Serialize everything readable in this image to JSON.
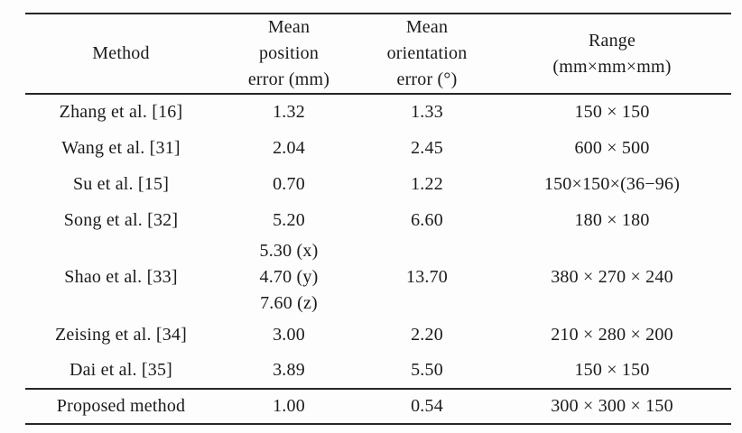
{
  "table": {
    "columns": [
      {
        "label": "Method"
      },
      {
        "label": "Mean\nposition\nerror (mm)"
      },
      {
        "label": "Mean\norientation\nerror (°)"
      },
      {
        "label": "Range\n(mm×mm×mm)"
      }
    ],
    "rows": [
      {
        "method": "Zhang et al. [16]",
        "position_error": "1.32",
        "orientation_error": "1.33",
        "range": "150 × 150"
      },
      {
        "method": "Wang et al. [31]",
        "position_error": "2.04",
        "orientation_error": "2.45",
        "range": "600 × 500"
      },
      {
        "method": "Su et al. [15]",
        "position_error": "0.70",
        "orientation_error": "1.22",
        "range": "150×150×(36−96)"
      },
      {
        "method": "Song et al. [32]",
        "position_error": "5.20",
        "orientation_error": "6.60",
        "range": "180 × 180"
      },
      {
        "method": "Shao et al. [33]",
        "position_error": "5.30 (x)\n4.70 (y)\n7.60 (z)",
        "orientation_error": "13.70",
        "range": "380 × 270 × 240"
      },
      {
        "method": "Zeising et al. [34]",
        "position_error": "3.00",
        "orientation_error": "2.20",
        "range": "210 × 280 × 200"
      },
      {
        "method": "Dai et al. [35]",
        "position_error": "3.89",
        "orientation_error": "5.50",
        "range": "150 × 150"
      },
      {
        "method": "Proposed method",
        "position_error": "1.00",
        "orientation_error": "0.54",
        "range": "300 × 300 × 150"
      }
    ]
  },
  "colors": {
    "background": "#fdfdfd",
    "text": "#1b1b1b",
    "rule": "#262626"
  }
}
